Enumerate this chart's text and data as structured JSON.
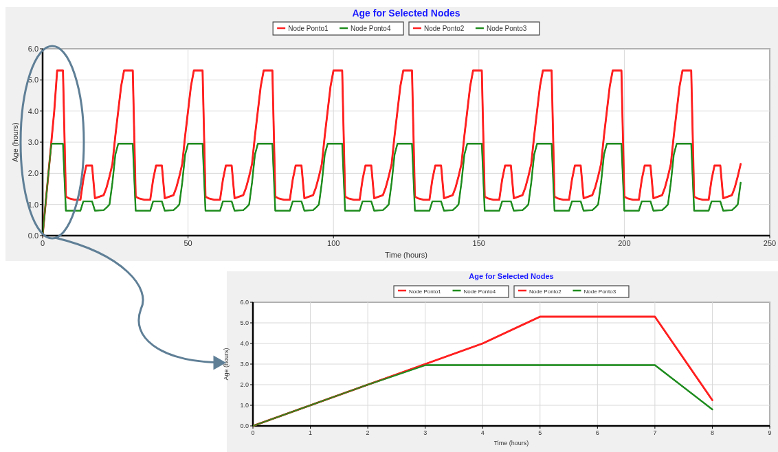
{
  "chart_data": [
    {
      "type": "line",
      "title": "Age for Selected Nodes",
      "xlabel": "Time (hours)",
      "ylabel": "Age (hours)",
      "xlim": [
        0,
        250
      ],
      "xticks": [
        0,
        50,
        100,
        150,
        200,
        250
      ],
      "ylim": [
        0,
        6
      ],
      "yticks": [
        {
          "value": 0,
          "label": "0.0"
        },
        {
          "value": 1,
          "label": "1.0"
        },
        {
          "value": 2,
          "label": "2.0"
        },
        {
          "value": 3,
          "label": "3.0"
        },
        {
          "value": 4,
          "label": "4.0"
        },
        {
          "value": 5,
          "label": "5.0"
        },
        {
          "value": 6,
          "label": "6.0"
        }
      ],
      "grid": true,
      "legend": "top",
      "marker": "none",
      "line_style": "solid",
      "x": [
        0,
        1,
        2,
        3,
        4,
        5,
        7,
        8,
        9,
        11,
        13,
        14,
        15,
        17,
        18,
        21,
        22,
        23,
        24,
        25,
        26,
        27,
        28,
        31,
        32,
        33,
        35,
        37,
        38,
        39,
        41,
        42,
        45,
        46,
        47,
        48,
        49,
        50,
        51,
        52,
        55,
        56,
        57,
        59,
        61,
        62,
        63,
        65,
        66,
        69,
        70,
        71,
        72,
        73,
        74,
        75,
        76,
        79,
        80,
        81,
        83,
        85,
        86,
        87,
        89,
        90,
        93,
        94,
        95,
        96,
        97,
        98,
        99,
        100,
        103,
        104,
        105,
        107,
        109,
        110,
        111,
        113,
        114,
        117,
        118,
        119,
        120,
        121,
        122,
        123,
        124,
        127,
        128,
        129,
        131,
        133,
        134,
        135,
        137,
        138,
        141,
        142,
        143,
        144,
        145,
        146,
        147,
        148,
        151,
        152,
        153,
        155,
        157,
        158,
        159,
        161,
        162,
        165,
        166,
        167,
        168,
        169,
        170,
        171,
        172,
        175,
        176,
        177,
        179,
        181,
        182,
        183,
        185,
        186,
        189,
        190,
        191,
        192,
        193,
        194,
        195,
        196,
        199,
        200,
        201,
        203,
        205,
        206,
        207,
        209,
        210,
        213,
        214,
        215,
        216,
        217,
        218,
        219,
        220,
        223,
        224,
        225,
        227,
        229,
        230,
        231,
        233,
        234,
        237,
        238,
        239,
        240
      ],
      "series": [
        {
          "name": "Node Ponto1",
          "color": "#ff2020",
          "values": [
            0,
            1,
            2,
            3,
            4,
            5.3,
            5.3,
            1.25,
            1.2,
            1.15,
            1.15,
            1.8,
            2.25,
            2.25,
            1.2,
            1.3,
            1.55,
            1.9,
            2.3,
            3.2,
            4,
            4.8,
            5.3,
            5.3,
            1.25,
            1.2,
            1.15,
            1.15,
            1.8,
            2.25,
            2.25,
            1.2,
            1.3,
            1.55,
            1.9,
            2.3,
            3.2,
            4,
            4.8,
            5.3,
            5.3,
            1.25,
            1.2,
            1.15,
            1.15,
            1.8,
            2.25,
            2.25,
            1.2,
            1.3,
            1.55,
            1.9,
            2.3,
            3.2,
            4,
            4.8,
            5.3,
            5.3,
            1.25,
            1.2,
            1.15,
            1.15,
            1.8,
            2.25,
            2.25,
            1.2,
            1.3,
            1.55,
            1.9,
            2.3,
            3.2,
            4,
            4.8,
            5.3,
            5.3,
            1.25,
            1.2,
            1.15,
            1.15,
            1.8,
            2.25,
            2.25,
            1.2,
            1.3,
            1.55,
            1.9,
            2.3,
            3.2,
            4,
            4.8,
            5.3,
            5.3,
            1.25,
            1.2,
            1.15,
            1.15,
            1.8,
            2.25,
            2.25,
            1.2,
            1.3,
            1.55,
            1.9,
            2.3,
            3.2,
            4,
            4.8,
            5.3,
            5.3,
            1.25,
            1.2,
            1.15,
            1.15,
            1.8,
            2.25,
            2.25,
            1.2,
            1.3,
            1.55,
            1.9,
            2.3,
            3.2,
            4,
            4.8,
            5.3,
            5.3,
            1.25,
            1.2,
            1.15,
            1.15,
            1.8,
            2.25,
            2.25,
            1.2,
            1.3,
            1.55,
            1.9,
            2.3,
            3.2,
            4,
            4.8,
            5.3,
            5.3,
            1.25,
            1.2,
            1.15,
            1.15,
            1.8,
            2.25,
            2.25,
            1.2,
            1.3,
            1.55,
            1.9,
            2.3,
            3.2,
            4,
            4.8,
            5.3,
            5.3,
            1.25,
            1.2,
            1.15,
            1.15,
            1.8,
            2.25,
            2.25,
            1.2,
            1.3,
            1.55,
            1.9,
            2.3
          ]
        },
        {
          "name": "Node Ponto4",
          "color": "#1e8c1e",
          "values": [
            0,
            1,
            2,
            2.95,
            2.95,
            2.95,
            2.95,
            0.8,
            0.8,
            0.8,
            0.8,
            1.1,
            1.1,
            1.1,
            0.8,
            0.82,
            0.9,
            1,
            1.7,
            2.6,
            2.95,
            2.95,
            2.95,
            2.95,
            0.8,
            0.8,
            0.8,
            0.8,
            1.1,
            1.1,
            1.1,
            0.8,
            0.82,
            0.9,
            1,
            1.7,
            2.6,
            2.95,
            2.95,
            2.95,
            2.95,
            0.8,
            0.8,
            0.8,
            0.8,
            1.1,
            1.1,
            1.1,
            0.8,
            0.82,
            0.9,
            1,
            1.7,
            2.6,
            2.95,
            2.95,
            2.95,
            2.95,
            0.8,
            0.8,
            0.8,
            0.8,
            1.1,
            1.1,
            1.1,
            0.8,
            0.82,
            0.9,
            1,
            1.7,
            2.6,
            2.95,
            2.95,
            2.95,
            2.95,
            0.8,
            0.8,
            0.8,
            0.8,
            1.1,
            1.1,
            1.1,
            0.8,
            0.82,
            0.9,
            1,
            1.7,
            2.6,
            2.95,
            2.95,
            2.95,
            2.95,
            0.8,
            0.8,
            0.8,
            0.8,
            1.1,
            1.1,
            1.1,
            0.8,
            0.82,
            0.9,
            1,
            1.7,
            2.6,
            2.95,
            2.95,
            2.95,
            2.95,
            0.8,
            0.8,
            0.8,
            0.8,
            1.1,
            1.1,
            1.1,
            0.8,
            0.82,
            0.9,
            1,
            1.7,
            2.6,
            2.95,
            2.95,
            2.95,
            2.95,
            0.8,
            0.8,
            0.8,
            0.8,
            1.1,
            1.1,
            1.1,
            0.8,
            0.82,
            0.9,
            1,
            1.7,
            2.6,
            2.95,
            2.95,
            2.95,
            2.95,
            0.8,
            0.8,
            0.8,
            0.8,
            1.1,
            1.1,
            1.1,
            0.8,
            0.82,
            0.9,
            1,
            1.7,
            2.6,
            2.95,
            2.95,
            2.95,
            2.95,
            0.8,
            0.8,
            0.8,
            0.8,
            1.1,
            1.1,
            1.1,
            0.8,
            0.82,
            0.9,
            1,
            1.7
          ]
        },
        {
          "name": "Node Ponto2",
          "color": "#ff2020",
          "values": [
            0,
            1,
            2,
            3,
            4,
            5.3,
            5.3,
            1.25,
            1.2,
            1.15,
            1.15,
            1.8,
            2.25,
            2.25,
            1.2,
            1.3,
            1.55,
            1.9,
            2.3,
            3.2,
            4,
            4.8,
            5.3,
            5.3,
            1.25,
            1.2,
            1.15,
            1.15,
            1.8,
            2.25,
            2.25,
            1.2,
            1.3,
            1.55,
            1.9,
            2.3,
            3.2,
            4,
            4.8,
            5.3,
            5.3,
            1.25,
            1.2,
            1.15,
            1.15,
            1.8,
            2.25,
            2.25,
            1.2,
            1.3,
            1.55,
            1.9,
            2.3,
            3.2,
            4,
            4.8,
            5.3,
            5.3,
            1.25,
            1.2,
            1.15,
            1.15,
            1.8,
            2.25,
            2.25,
            1.2,
            1.3,
            1.55,
            1.9,
            2.3,
            3.2,
            4,
            4.8,
            5.3,
            5.3,
            1.25,
            1.2,
            1.15,
            1.15,
            1.8,
            2.25,
            2.25,
            1.2,
            1.3,
            1.55,
            1.9,
            2.3,
            3.2,
            4,
            4.8,
            5.3,
            5.3,
            1.25,
            1.2,
            1.15,
            1.15,
            1.8,
            2.25,
            2.25,
            1.2,
            1.3,
            1.55,
            1.9,
            2.3,
            3.2,
            4,
            4.8,
            5.3,
            5.3,
            1.25,
            1.2,
            1.15,
            1.15,
            1.8,
            2.25,
            2.25,
            1.2,
            1.3,
            1.55,
            1.9,
            2.3,
            3.2,
            4,
            4.8,
            5.3,
            5.3,
            1.25,
            1.2,
            1.15,
            1.15,
            1.8,
            2.25,
            2.25,
            1.2,
            1.3,
            1.55,
            1.9,
            2.3,
            3.2,
            4,
            4.8,
            5.3,
            5.3,
            1.25,
            1.2,
            1.15,
            1.15,
            1.8,
            2.25,
            2.25,
            1.2,
            1.3,
            1.55,
            1.9,
            2.3,
            3.2,
            4,
            4.8,
            5.3,
            5.3,
            1.25,
            1.2,
            1.15,
            1.15,
            1.8,
            2.25,
            2.25,
            1.2,
            1.3,
            1.55,
            1.9,
            2.3
          ]
        },
        {
          "name": "Node Ponto3",
          "color": "#1e8c1e",
          "values": [
            0,
            1,
            2,
            2.95,
            2.95,
            2.95,
            2.95,
            0.8,
            0.8,
            0.8,
            0.8,
            1.1,
            1.1,
            1.1,
            0.8,
            0.82,
            0.9,
            1,
            1.7,
            2.6,
            2.95,
            2.95,
            2.95,
            2.95,
            0.8,
            0.8,
            0.8,
            0.8,
            1.1,
            1.1,
            1.1,
            0.8,
            0.82,
            0.9,
            1,
            1.7,
            2.6,
            2.95,
            2.95,
            2.95,
            2.95,
            0.8,
            0.8,
            0.8,
            0.8,
            1.1,
            1.1,
            1.1,
            0.8,
            0.82,
            0.9,
            1,
            1.7,
            2.6,
            2.95,
            2.95,
            2.95,
            2.95,
            0.8,
            0.8,
            0.8,
            0.8,
            1.1,
            1.1,
            1.1,
            0.8,
            0.82,
            0.9,
            1,
            1.7,
            2.6,
            2.95,
            2.95,
            2.95,
            2.95,
            0.8,
            0.8,
            0.8,
            0.8,
            1.1,
            1.1,
            1.1,
            0.8,
            0.82,
            0.9,
            1,
            1.7,
            2.6,
            2.95,
            2.95,
            2.95,
            2.95,
            0.8,
            0.8,
            0.8,
            0.8,
            1.1,
            1.1,
            1.1,
            0.8,
            0.82,
            0.9,
            1,
            1.7,
            2.6,
            2.95,
            2.95,
            2.95,
            2.95,
            0.8,
            0.8,
            0.8,
            0.8,
            1.1,
            1.1,
            1.1,
            0.8,
            0.82,
            0.9,
            1,
            1.7,
            2.6,
            2.95,
            2.95,
            2.95,
            2.95,
            0.8,
            0.8,
            0.8,
            0.8,
            1.1,
            1.1,
            1.1,
            0.8,
            0.82,
            0.9,
            1,
            1.7,
            2.6,
            2.95,
            2.95,
            2.95,
            2.95,
            0.8,
            0.8,
            0.8,
            0.8,
            1.1,
            1.1,
            1.1,
            0.8,
            0.82,
            0.9,
            1,
            1.7,
            2.6,
            2.95,
            2.95,
            2.95,
            2.95,
            0.8,
            0.8,
            0.8,
            0.8,
            1.1,
            1.1,
            1.1,
            0.8,
            0.82,
            0.9,
            1,
            1.7
          ]
        }
      ]
    },
    {
      "type": "line",
      "title": "Age for Selected Nodes",
      "xlabel": "Time (hours)",
      "ylabel": "Age (hours)",
      "xlim": [
        0,
        9
      ],
      "xticks": [
        0,
        1,
        2,
        3,
        4,
        5,
        6,
        7,
        8,
        9
      ],
      "ylim": [
        0,
        6
      ],
      "yticks": [
        {
          "value": 0,
          "label": "0.0"
        },
        {
          "value": 1,
          "label": "1.0"
        },
        {
          "value": 2,
          "label": "2.0"
        },
        {
          "value": 3,
          "label": "3.0"
        },
        {
          "value": 4,
          "label": "4.0"
        },
        {
          "value": 5,
          "label": "5.0"
        },
        {
          "value": 6,
          "label": "6.0"
        }
      ],
      "grid": true,
      "legend": "top",
      "marker": "none",
      "line_style": "solid",
      "x": [
        0,
        1,
        2,
        3,
        4,
        5,
        6,
        7,
        8
      ],
      "series": [
        {
          "name": "Node Ponto1",
          "color": "#ff2020",
          "values": [
            0,
            1,
            2,
            3,
            4,
            5.3,
            5.3,
            5.3,
            1.25
          ]
        },
        {
          "name": "Node Ponto4",
          "color": "#1e8c1e",
          "values": [
            0,
            1,
            2,
            2.95,
            2.95,
            2.95,
            2.95,
            2.95,
            0.8
          ]
        },
        {
          "name": "Node Ponto2",
          "color": "#ff2020",
          "values": [
            0,
            1,
            2,
            3,
            4,
            5.3,
            5.3,
            5.3,
            1.25
          ]
        },
        {
          "name": "Node Ponto3",
          "color": "#1e8c1e",
          "values": [
            0,
            1,
            2,
            2.95,
            2.95,
            2.95,
            2.95,
            2.95,
            0.8
          ]
        }
      ]
    }
  ]
}
